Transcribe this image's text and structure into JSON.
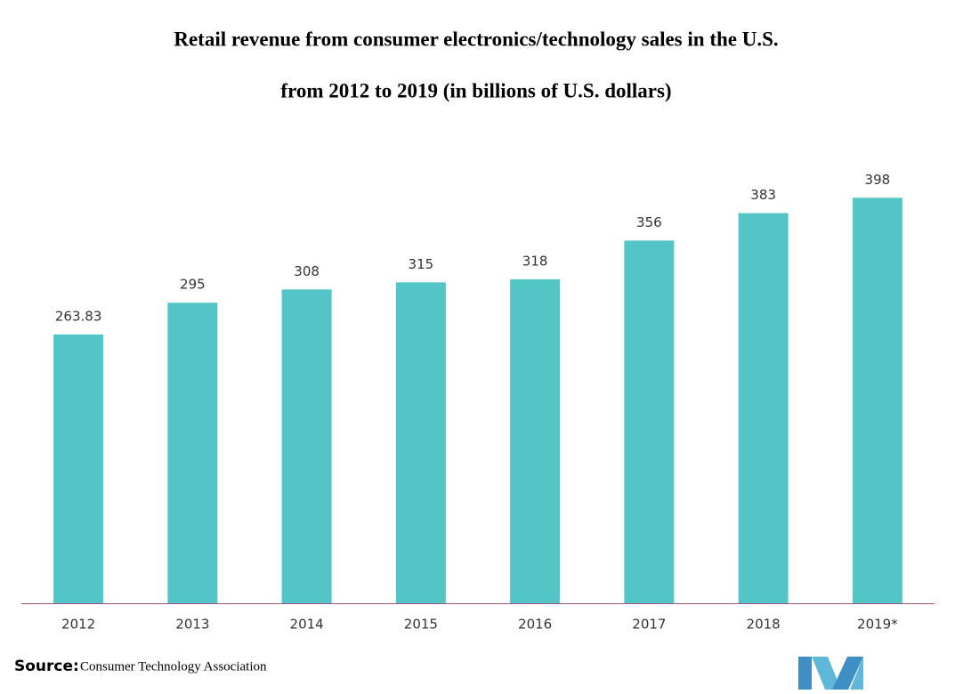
{
  "chart_data": {
    "type": "bar",
    "title": [
      "Retail revenue from consumer electronics/technology sales in the U.S.",
      "from 2012 to 2019 (in billions of U.S. dollars)"
    ],
    "categories": [
      "2012",
      "2013",
      "2014",
      "2015",
      "2016",
      "2017",
      "2018",
      "2019*"
    ],
    "values": [
      263.83,
      295,
      308,
      315,
      318,
      356,
      383,
      398
    ],
    "color": "#53c5c6",
    "ylim": [
      0,
      400
    ],
    "source": {
      "label": "Source:",
      "text": "Consumer Technology Association"
    }
  }
}
